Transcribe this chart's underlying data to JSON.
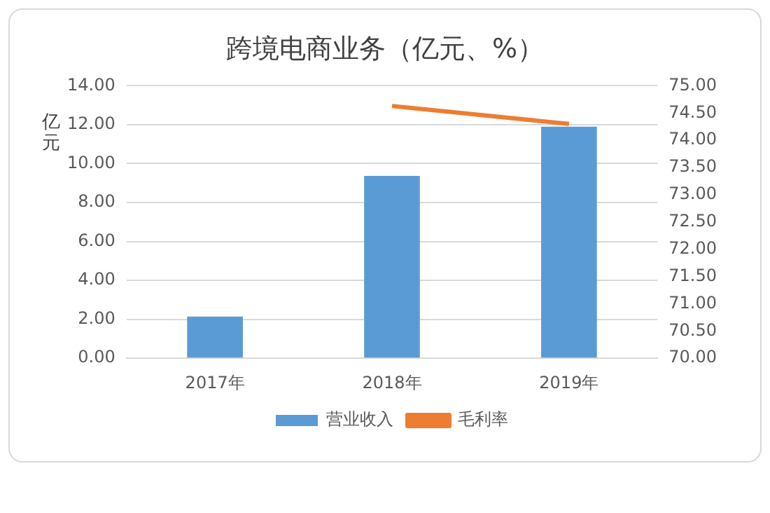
{
  "chart_data": {
    "type": "bar",
    "title": "跨境电商业务（亿元、%）",
    "ylabel": "亿元",
    "categories": [
      "2017年",
      "2018年",
      "2019年"
    ],
    "series": [
      {
        "name": "营业收入",
        "color": "#5b9bd5",
        "values": [
          2.14,
          9.37,
          11.9
        ]
      },
      {
        "name": "毛利率",
        "type": "line",
        "axis": "y2",
        "color": "#ed7d31",
        "values": [
          null,
          74.63,
          74.3
        ]
      }
    ],
    "ylim": [
      0,
      14
    ],
    "yticks": [
      {
        "value": 0,
        "label": "0.00"
      },
      {
        "value": 2,
        "label": "2.00"
      },
      {
        "value": 4,
        "label": "4.00"
      },
      {
        "value": 6,
        "label": "6.00"
      },
      {
        "value": 8,
        "label": "8.00"
      },
      {
        "value": 10,
        "label": "10.00"
      },
      {
        "value": 12,
        "label": "12.00"
      },
      {
        "value": 14,
        "label": "14.00"
      }
    ],
    "y2lim": [
      70,
      75
    ],
    "y2ticks": [
      {
        "value": 70,
        "label": "70.00"
      },
      {
        "value": 70.5,
        "label": "70.50"
      },
      {
        "value": 71,
        "label": "71.00"
      },
      {
        "value": 71.5,
        "label": "71.50"
      },
      {
        "value": 72,
        "label": "72.00"
      },
      {
        "value": 72.5,
        "label": "72.50"
      },
      {
        "value": 73,
        "label": "73.00"
      },
      {
        "value": 73.5,
        "label": "73.50"
      },
      {
        "value": 74,
        "label": "74.00"
      },
      {
        "value": 74.5,
        "label": "74.50"
      },
      {
        "value": 75,
        "label": "75.00"
      }
    ],
    "grid": "y",
    "legend": "bottom",
    "marker": "none"
  }
}
